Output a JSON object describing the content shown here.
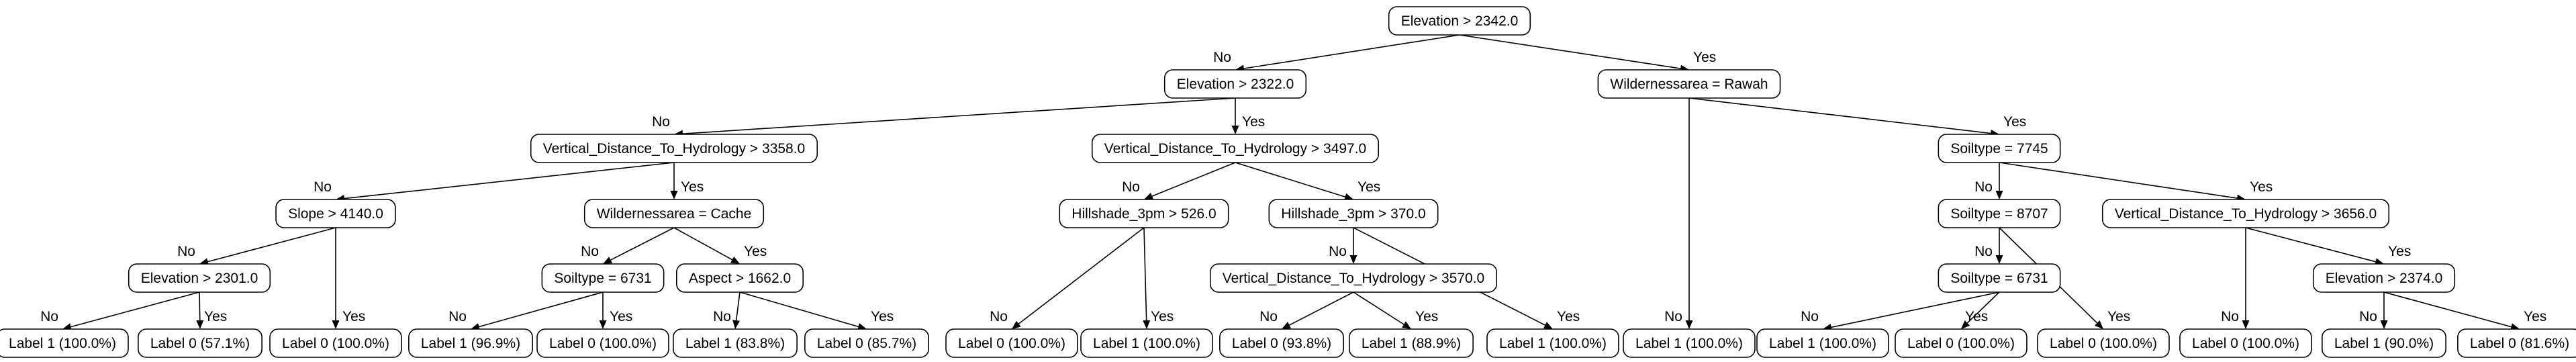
{
  "tree": {
    "nodes": [
      {
        "id": "n0",
        "label": "Elevation > 2342.0"
      },
      {
        "id": "n1",
        "label": "Elevation > 2322.0"
      },
      {
        "id": "n2",
        "label": "Wildernessarea = Rawah"
      },
      {
        "id": "n3",
        "label": "Vertical_Distance_To_Hydrology > 3358.0"
      },
      {
        "id": "n4",
        "label": "Vertical_Distance_To_Hydrology > 3497.0"
      },
      {
        "id": "n5",
        "label": "Soiltype = 7745"
      },
      {
        "id": "n6",
        "label": "Slope > 4140.0"
      },
      {
        "id": "n7",
        "label": "Wildernessarea = Cache"
      },
      {
        "id": "n8",
        "label": "Hillshade_3pm > 526.0"
      },
      {
        "id": "n9",
        "label": "Hillshade_3pm > 370.0"
      },
      {
        "id": "n10",
        "label": "Soiltype = 8707"
      },
      {
        "id": "n11",
        "label": "Vertical_Distance_To_Hydrology > 3656.0"
      },
      {
        "id": "n12",
        "label": "Elevation > 2301.0"
      },
      {
        "id": "n13",
        "label": "Soiltype = 6731"
      },
      {
        "id": "n14",
        "label": "Aspect > 1662.0"
      },
      {
        "id": "n15",
        "label": "Vertical_Distance_To_Hydrology > 3570.0"
      },
      {
        "id": "n16",
        "label": "Soiltype = 6731"
      },
      {
        "id": "n17",
        "label": "Elevation > 2374.0"
      },
      {
        "id": "l0",
        "label": "Label 1 (100.0%)"
      },
      {
        "id": "l1",
        "label": "Label 0 (57.1%)"
      },
      {
        "id": "l2",
        "label": "Label 0 (100.0%)"
      },
      {
        "id": "l3",
        "label": "Label 1 (96.9%)"
      },
      {
        "id": "l4",
        "label": "Label 0 (100.0%)"
      },
      {
        "id": "l5",
        "label": "Label 1 (83.8%)"
      },
      {
        "id": "l6",
        "label": "Label 0 (85.7%)"
      },
      {
        "id": "l7",
        "label": "Label 0 (100.0%)"
      },
      {
        "id": "l8",
        "label": "Label 1 (100.0%)"
      },
      {
        "id": "l9",
        "label": "Label 0 (93.8%)"
      },
      {
        "id": "l10",
        "label": "Label 1 (88.9%)"
      },
      {
        "id": "l11",
        "label": "Label 1 (100.0%)"
      },
      {
        "id": "l12",
        "label": "Label 1 (100.0%)"
      },
      {
        "id": "l13",
        "label": "Label 1 (100.0%)"
      },
      {
        "id": "l14",
        "label": "Label 0 (100.0%)"
      },
      {
        "id": "l15",
        "label": "Label 0 (100.0%)"
      },
      {
        "id": "l16",
        "label": "Label 0 (100.0%)"
      },
      {
        "id": "l17",
        "label": "Label 1 (90.0%)"
      },
      {
        "id": "l18",
        "label": "Label 0 (81.6%)"
      }
    ],
    "edges": [
      {
        "from": "n0",
        "to": "n1",
        "label": "No"
      },
      {
        "from": "n0",
        "to": "n2",
        "label": "Yes"
      },
      {
        "from": "n1",
        "to": "n3",
        "label": "No"
      },
      {
        "from": "n1",
        "to": "n4",
        "label": "Yes"
      },
      {
        "from": "n2",
        "to": "l12",
        "label": "No"
      },
      {
        "from": "n2",
        "to": "n5",
        "label": "Yes"
      },
      {
        "from": "n3",
        "to": "n6",
        "label": "No"
      },
      {
        "from": "n3",
        "to": "n7",
        "label": "Yes"
      },
      {
        "from": "n4",
        "to": "n8",
        "label": "No"
      },
      {
        "from": "n4",
        "to": "n9",
        "label": "Yes"
      },
      {
        "from": "n5",
        "to": "n10",
        "label": "No"
      },
      {
        "from": "n5",
        "to": "n11",
        "label": "Yes"
      },
      {
        "from": "n6",
        "to": "n12",
        "label": "No"
      },
      {
        "from": "n6",
        "to": "l2",
        "label": "Yes"
      },
      {
        "from": "n7",
        "to": "n13",
        "label": "No"
      },
      {
        "from": "n7",
        "to": "n14",
        "label": "Yes"
      },
      {
        "from": "n8",
        "to": "l7",
        "label": "No"
      },
      {
        "from": "n8",
        "to": "l8",
        "label": "Yes"
      },
      {
        "from": "n9",
        "to": "n15",
        "label": "No"
      },
      {
        "from": "n9",
        "to": "l11",
        "label": "Yes"
      },
      {
        "from": "n10",
        "to": "n16",
        "label": "No"
      },
      {
        "from": "n10",
        "to": "l15",
        "label": "Yes"
      },
      {
        "from": "n11",
        "to": "l16",
        "label": "No"
      },
      {
        "from": "n11",
        "to": "n17",
        "label": "Yes"
      },
      {
        "from": "n12",
        "to": "l0",
        "label": "No"
      },
      {
        "from": "n12",
        "to": "l1",
        "label": "Yes"
      },
      {
        "from": "n13",
        "to": "l3",
        "label": "No"
      },
      {
        "from": "n13",
        "to": "l4",
        "label": "Yes"
      },
      {
        "from": "n14",
        "to": "l5",
        "label": "No"
      },
      {
        "from": "n14",
        "to": "l6",
        "label": "Yes"
      },
      {
        "from": "n15",
        "to": "l9",
        "label": "No"
      },
      {
        "from": "n15",
        "to": "l10",
        "label": "Yes"
      },
      {
        "from": "n16",
        "to": "l13",
        "label": "No"
      },
      {
        "from": "n16",
        "to": "l14",
        "label": "Yes"
      },
      {
        "from": "n17",
        "to": "l17",
        "label": "No"
      },
      {
        "from": "n17",
        "to": "l18",
        "label": "Yes"
      }
    ]
  }
}
